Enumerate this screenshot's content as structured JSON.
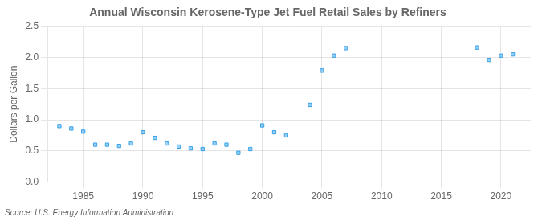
{
  "chart_data": {
    "type": "scatter",
    "title": "Annual Wisconsin Kerosene-Type Jet Fuel Retail Sales by Refiners",
    "ylabel": "Dollars per Gallon",
    "annotations": [
      "Source: U.S. Energy Information Administration"
    ],
    "x": [
      1983,
      1984,
      1985,
      1986,
      1987,
      1988,
      1989,
      1990,
      1991,
      1992,
      1993,
      1994,
      1995,
      1996,
      1997,
      1998,
      1999,
      2000,
      2001,
      2002,
      2004,
      2005,
      2006,
      2007,
      2018,
      2019,
      2020,
      2021
    ],
    "values": [
      0.9,
      0.86,
      0.81,
      0.6,
      0.6,
      0.58,
      0.62,
      0.8,
      0.71,
      0.62,
      0.57,
      0.54,
      0.53,
      0.62,
      0.6,
      0.47,
      0.53,
      0.91,
      0.8,
      0.75,
      1.24,
      1.79,
      2.03,
      2.15,
      2.16,
      1.96,
      2.03,
      2.05
    ],
    "marker": "square",
    "xlim": [
      1982,
      2022.5
    ],
    "xticks": [
      1985,
      1990,
      1995,
      2000,
      2005,
      2010,
      2015,
      2020
    ],
    "ylim": [
      0.0,
      2.5
    ],
    "yticks": [
      {
        "value": 0,
        "label": "0.0"
      },
      0.5,
      {
        "value": 1,
        "label": "1.0"
      },
      1.5,
      {
        "value": 2,
        "label": "2.0"
      },
      2.5
    ],
    "grid": true
  }
}
